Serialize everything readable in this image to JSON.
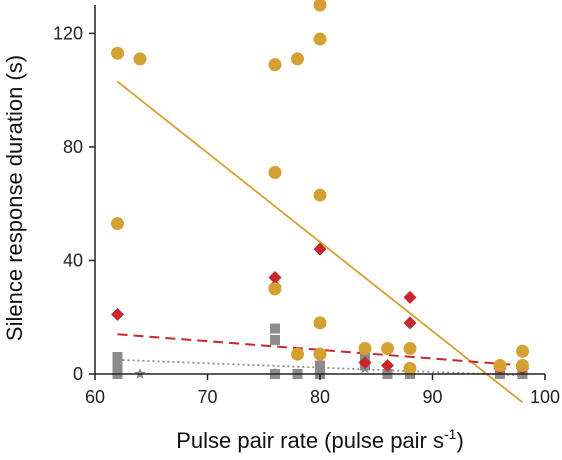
{
  "chart_data": {
    "type": "scatter",
    "xlabel": "Pulse pair rate (pulse pair s",
    "xlabel_sup": "-1",
    "xlabel_suffix": ")",
    "ylabel": "Silence response duration (s)",
    "xlim": [
      60,
      100
    ],
    "ylim": [
      0,
      130
    ],
    "xticks": [
      60,
      70,
      80,
      90,
      100
    ],
    "yticks": [
      0,
      40,
      80,
      120
    ],
    "grid": false,
    "colors": {
      "gold": "#d4a031",
      "red": "#c8272d",
      "gray": "#8c8c8c",
      "axis": "#222222"
    },
    "series": [
      {
        "marker": "circle",
        "color": "#d4a031",
        "points": [
          [
            62,
            113
          ],
          [
            62,
            53
          ],
          [
            64,
            111
          ],
          [
            76,
            109
          ],
          [
            76,
            71
          ],
          [
            76,
            30
          ],
          [
            78,
            111
          ],
          [
            78,
            7
          ],
          [
            80,
            130
          ],
          [
            80,
            118
          ],
          [
            80,
            63
          ],
          [
            80,
            18
          ],
          [
            80,
            7
          ],
          [
            84,
            9
          ],
          [
            86,
            9
          ],
          [
            88,
            9
          ],
          [
            88,
            2
          ],
          [
            96,
            3
          ],
          [
            98,
            8
          ],
          [
            98,
            3
          ]
        ],
        "fit": {
          "style": "solid",
          "x": [
            62,
            98
          ],
          "y": [
            103,
            -10
          ]
        }
      },
      {
        "marker": "diamond",
        "color": "#c8272d",
        "points": [
          [
            62,
            21
          ],
          [
            76,
            34
          ],
          [
            76,
            31
          ],
          [
            80,
            44
          ],
          [
            84,
            4
          ],
          [
            86,
            3
          ],
          [
            88,
            27
          ],
          [
            88,
            18
          ],
          [
            96,
            2
          ],
          [
            98,
            2
          ]
        ],
        "fit": {
          "style": "dashed",
          "x": [
            62,
            98
          ],
          "y": [
            14,
            3
          ]
        }
      },
      {
        "marker": "square",
        "color": "#8c8c8c",
        "points": [
          [
            62,
            6
          ],
          [
            62,
            3
          ],
          [
            62,
            0
          ],
          [
            76,
            16
          ],
          [
            76,
            12
          ],
          [
            76,
            0
          ],
          [
            78,
            0
          ],
          [
            80,
            3
          ],
          [
            80,
            0
          ],
          [
            84,
            6
          ],
          [
            84,
            3
          ],
          [
            86,
            0
          ],
          [
            88,
            0
          ],
          [
            96,
            0
          ],
          [
            98,
            0
          ]
        ],
        "fit": {
          "style": "dotted",
          "x": [
            62,
            98
          ],
          "y": [
            5,
            -0.5
          ]
        }
      },
      {
        "marker": "star",
        "color": "#8c8c8c",
        "points": [
          [
            62,
            0.5
          ],
          [
            64,
            0
          ],
          [
            76,
            0
          ],
          [
            78,
            0
          ],
          [
            80,
            1
          ],
          [
            80,
            0
          ],
          [
            84,
            2
          ],
          [
            86,
            0
          ],
          [
            88,
            0
          ],
          [
            96,
            0
          ],
          [
            98,
            0
          ]
        ]
      }
    ]
  }
}
